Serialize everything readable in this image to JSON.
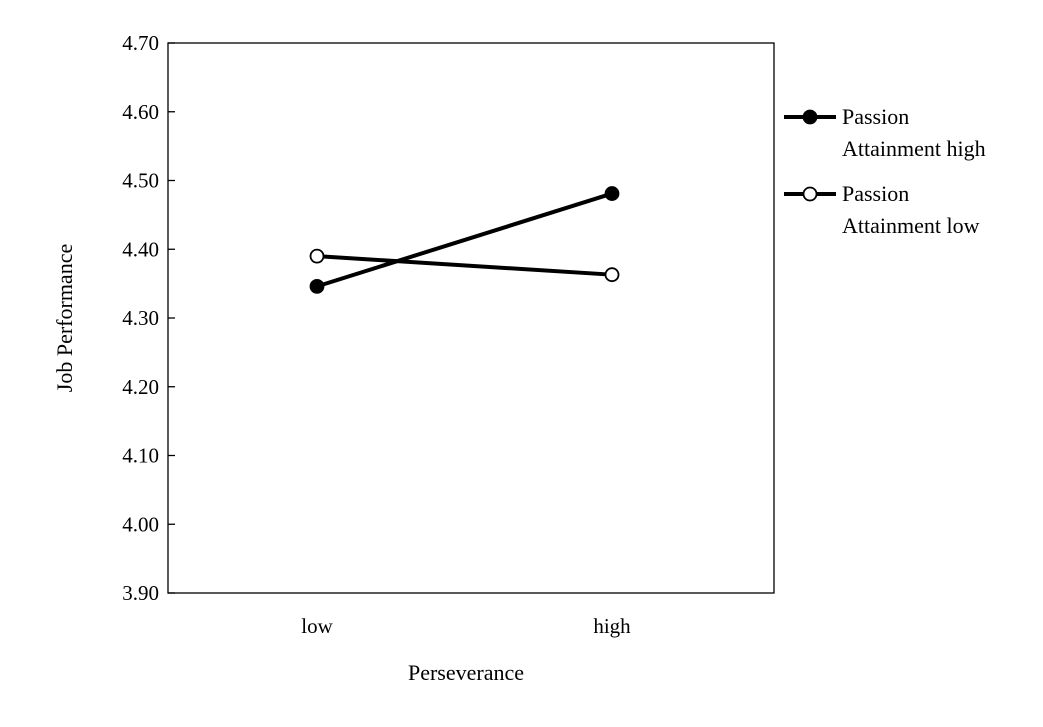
{
  "chart_data": {
    "type": "line",
    "title": "",
    "xlabel": "Perseverance",
    "ylabel": "Job Performance",
    "categories": [
      "low",
      "high"
    ],
    "ylim": [
      3.9,
      4.7
    ],
    "yticks": [
      "3.90",
      "4.00",
      "4.10",
      "4.20",
      "4.30",
      "4.40",
      "4.50",
      "4.60",
      "4.70"
    ],
    "grid": false,
    "legend_position": "right",
    "series": [
      {
        "name_lines": [
          "Passion",
          "Attainment high"
        ],
        "values": [
          4.346,
          4.481
        ],
        "marker": "filled-circle",
        "color": "#000000"
      },
      {
        "name_lines": [
          "Passion",
          "Attainment low"
        ],
        "values": [
          4.39,
          4.363
        ],
        "marker": "open-circle",
        "color": "#000000"
      }
    ]
  }
}
